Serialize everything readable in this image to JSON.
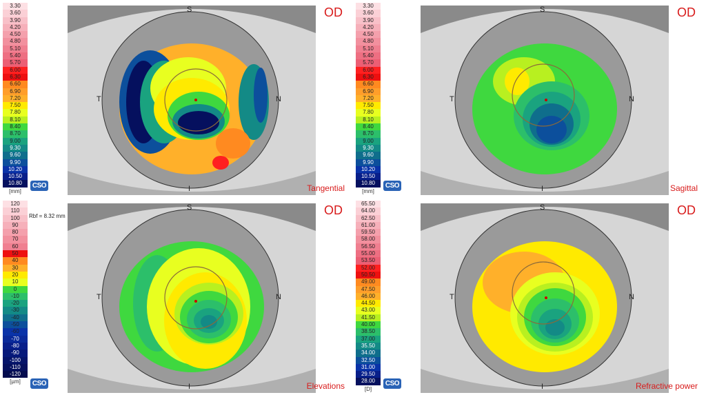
{
  "eye": "OD",
  "directions": {
    "top": "S",
    "bottom": "I",
    "left": "T",
    "right": "N"
  },
  "logo_text": "CSO",
  "maps": [
    {
      "title": "Tangential",
      "unit": "[mm]",
      "note": "",
      "scale": [
        "3.30",
        "3.60",
        "3.90",
        "4.20",
        "4.50",
        "4.80",
        "5.10",
        "5.40",
        "5.70",
        "6.00",
        "6.30",
        "6.60",
        "6.90",
        "7.20",
        "7.50",
        "7.80",
        "8.10",
        "8.40",
        "8.70",
        "9.00",
        "9.30",
        "9.60",
        "9.90",
        "10.20",
        "10.50",
        "10.80"
      ],
      "colors": [
        "#fde0e4",
        "#fbd0d6",
        "#f8c0c8",
        "#f6b0ba",
        "#f4a0ac",
        "#f2909e",
        "#f07f90",
        "#ee6f82",
        "#ec5f74",
        "#ff2020",
        "#ee1010",
        "#ff8a20",
        "#ff9e2a",
        "#ffb02a",
        "#ffea00",
        "#e8ff20",
        "#b8f020",
        "#3fd83f",
        "#2cbf6a",
        "#1aa37f",
        "#138a86",
        "#0f6e8c",
        "#0c4f9c",
        "#0a33a8",
        "#081f8a",
        "#05105e"
      ]
    },
    {
      "title": "Sagittal",
      "unit": "[mm]",
      "note": "",
      "scale": [
        "3.30",
        "3.60",
        "3.90",
        "4.20",
        "4.50",
        "4.80",
        "5.10",
        "5.40",
        "5.70",
        "6.00",
        "6.30",
        "6.60",
        "6.90",
        "7.20",
        "7.50",
        "7.80",
        "8.10",
        "8.40",
        "8.70",
        "9.00",
        "9.30",
        "9.60",
        "9.90",
        "10.20",
        "10.50",
        "10.80"
      ],
      "colors": [
        "#fde0e4",
        "#fbd0d6",
        "#f8c0c8",
        "#f6b0ba",
        "#f4a0ac",
        "#f2909e",
        "#f07f90",
        "#ee6f82",
        "#ec5f74",
        "#ff2020",
        "#ee1010",
        "#ff8a20",
        "#ff9e2a",
        "#ffb02a",
        "#ffea00",
        "#e8ff20",
        "#b8f020",
        "#3fd83f",
        "#2cbf6a",
        "#1aa37f",
        "#138a86",
        "#0f6e8c",
        "#0c4f9c",
        "#0a33a8",
        "#081f8a",
        "#05105e"
      ]
    },
    {
      "title": "Elevations",
      "unit": "[µm]",
      "note": "Rbf = 8.32 mm",
      "scale": [
        "120",
        "110",
        "100",
        "90",
        "80",
        "70",
        "60",
        "50",
        "40",
        "30",
        "20",
        "10",
        "0",
        "-10",
        "-20",
        "-30",
        "-40",
        "-50",
        "-60",
        "-70",
        "-80",
        "-90",
        "-100",
        "-110",
        "-120"
      ],
      "colors": [
        "#fde0e4",
        "#fbd0d6",
        "#f8c0c8",
        "#f6b0ba",
        "#f4a0ac",
        "#f2909e",
        "#f07f90",
        "#ee1010",
        "#ff8a20",
        "#ffb02a",
        "#ffea00",
        "#e8ff20",
        "#3fd83f",
        "#2cbf6a",
        "#1aa37f",
        "#138a86",
        "#0f6e8c",
        "#0c4f9c",
        "#0a33a8",
        "#0a2a9a",
        "#081f8a",
        "#06197a",
        "#05146a",
        "#05105e",
        "#040c4e"
      ]
    },
    {
      "title": "Refractive power",
      "unit": "[D]",
      "note": "",
      "scale": [
        "65.50",
        "64.00",
        "62.50",
        "61.00",
        "59.50",
        "58.00",
        "56.50",
        "55.00",
        "53.50",
        "52.00",
        "50.50",
        "49.00",
        "47.50",
        "46.00",
        "44.50",
        "43.00",
        "41.50",
        "40.00",
        "38.50",
        "37.00",
        "35.50",
        "34.00",
        "32.50",
        "31.00",
        "29.50",
        "28.00"
      ],
      "colors": [
        "#fde0e4",
        "#fbd0d6",
        "#f8c0c8",
        "#f6b0ba",
        "#f4a0ac",
        "#f2909e",
        "#f07f90",
        "#ee6f82",
        "#ec5f74",
        "#ff2020",
        "#ee1010",
        "#ff8a20",
        "#ff9e2a",
        "#ffb02a",
        "#ffea00",
        "#e8ff20",
        "#b8f020",
        "#3fd83f",
        "#2cbf6a",
        "#1aa37f",
        "#138a86",
        "#0f6e8c",
        "#0c4f9c",
        "#0a33a8",
        "#081f8a",
        "#05105e"
      ]
    }
  ]
}
